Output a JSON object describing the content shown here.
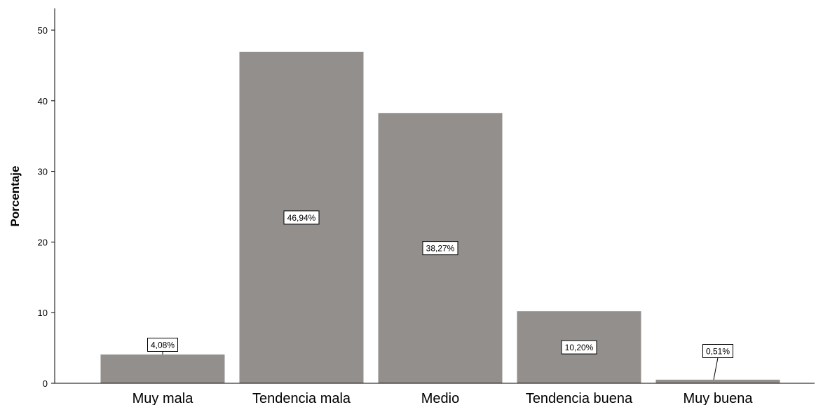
{
  "chart_data": {
    "type": "bar",
    "categories": [
      "Muy mala",
      "Tendencia mala",
      "Medio",
      "Tendencia buena",
      "Muy buena"
    ],
    "values": [
      4.08,
      46.94,
      38.27,
      10.2,
      0.51
    ],
    "data_labels": [
      "4,08%",
      "46,94%",
      "38,27%",
      "10,20%",
      "0,51%"
    ],
    "ylabel": "Porcentaje",
    "xlabel": "",
    "ylim": [
      0,
      52
    ],
    "yticks": [
      0,
      10,
      20,
      30,
      40,
      50
    ],
    "grid": false,
    "colors": {
      "bar": "#938f8d",
      "axis": "#000000",
      "label_box": "#ffffff"
    }
  }
}
